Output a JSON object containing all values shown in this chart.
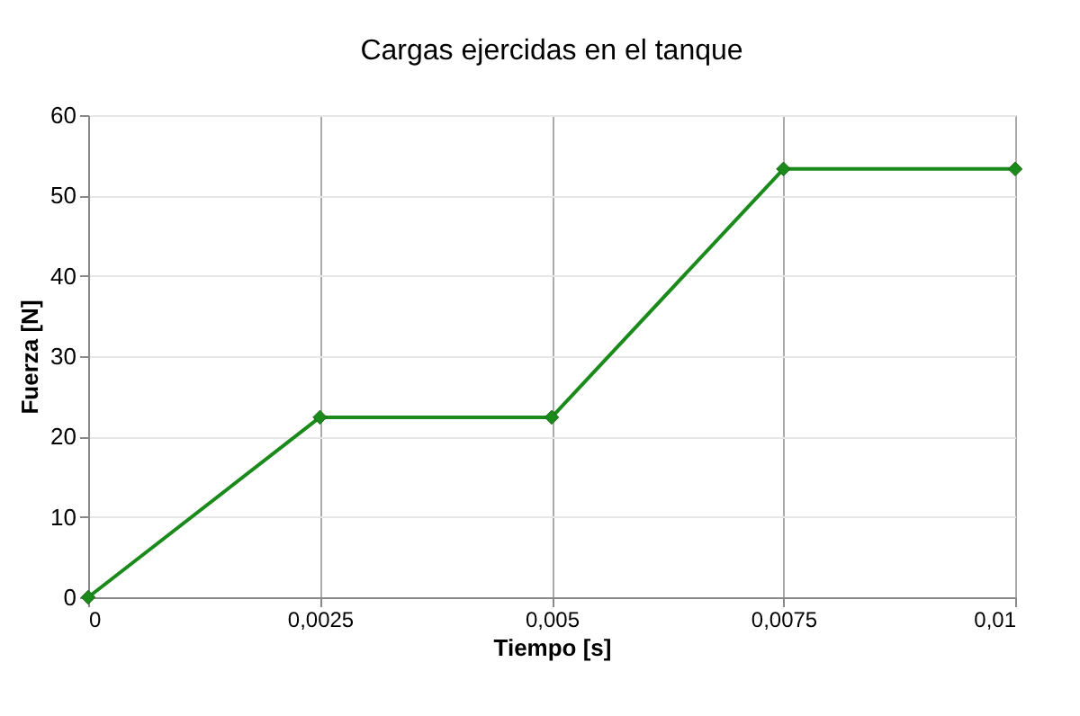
{
  "chart_data": {
    "type": "line",
    "title": "Cargas ejercidas en el tanque",
    "xlabel": "Tiempo [s]",
    "ylabel": "Fuerza [N]",
    "x": [
      0,
      0.0025,
      0.005,
      0.0075,
      0.01
    ],
    "series": [
      {
        "color": "#1a8a1a",
        "values": [
          0,
          22.4,
          22.4,
          53.3,
          53.3
        ]
      }
    ],
    "xlim": [
      0,
      0.01
    ],
    "xticks": [
      0,
      {
        "value": 0.0025,
        "label": "0,0025"
      },
      {
        "value": 0.005,
        "label": "0,005"
      },
      {
        "value": 0.0075,
        "label": "0,0075"
      },
      {
        "value": 0.01,
        "label": "0,01"
      }
    ],
    "ylim": [
      0,
      60
    ],
    "yticks": [
      0,
      10,
      20,
      30,
      40,
      50,
      60
    ],
    "grid": true,
    "marker": "diamond",
    "line_style": "solid"
  }
}
